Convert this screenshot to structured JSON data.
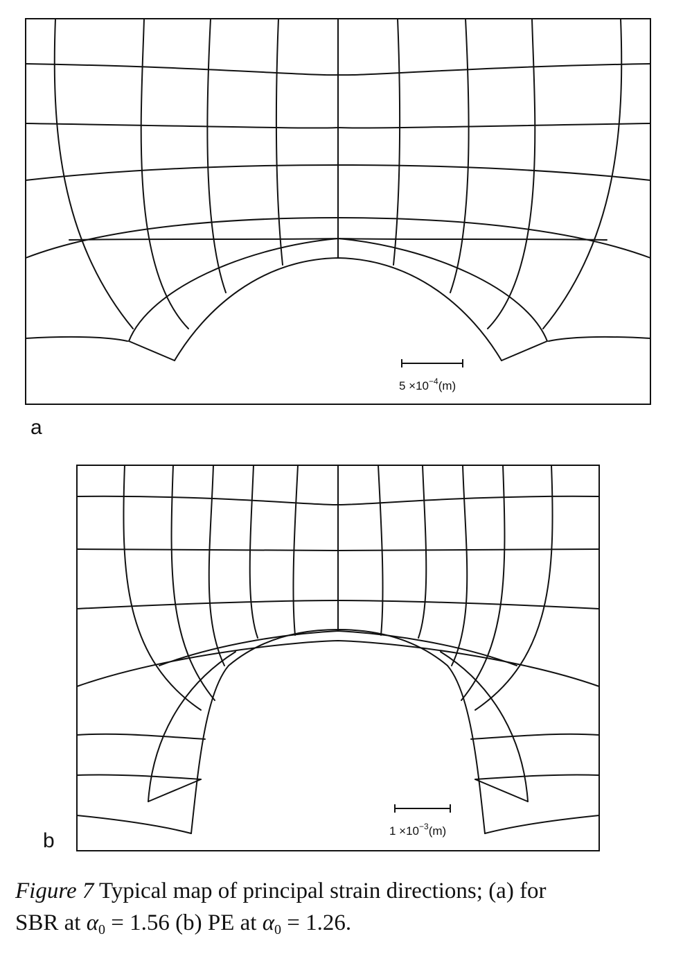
{
  "panels": [
    {
      "letter": "a",
      "scale_label": "5 ×10",
      "scale_exp": "−4",
      "scale_unit": "(m)"
    },
    {
      "letter": "b",
      "scale_label": "1 ×10",
      "scale_exp": "−3",
      "scale_unit": "(m)"
    }
  ],
  "caption": {
    "figure": "Figure  7",
    "text1": " Typical map of principal strain directions; (a) for",
    "text2": "SBR at ",
    "alpha": "α",
    "sub": "0",
    "eq1": " = 1.56 (b) PE at ",
    "eq2": " = 1.26."
  }
}
